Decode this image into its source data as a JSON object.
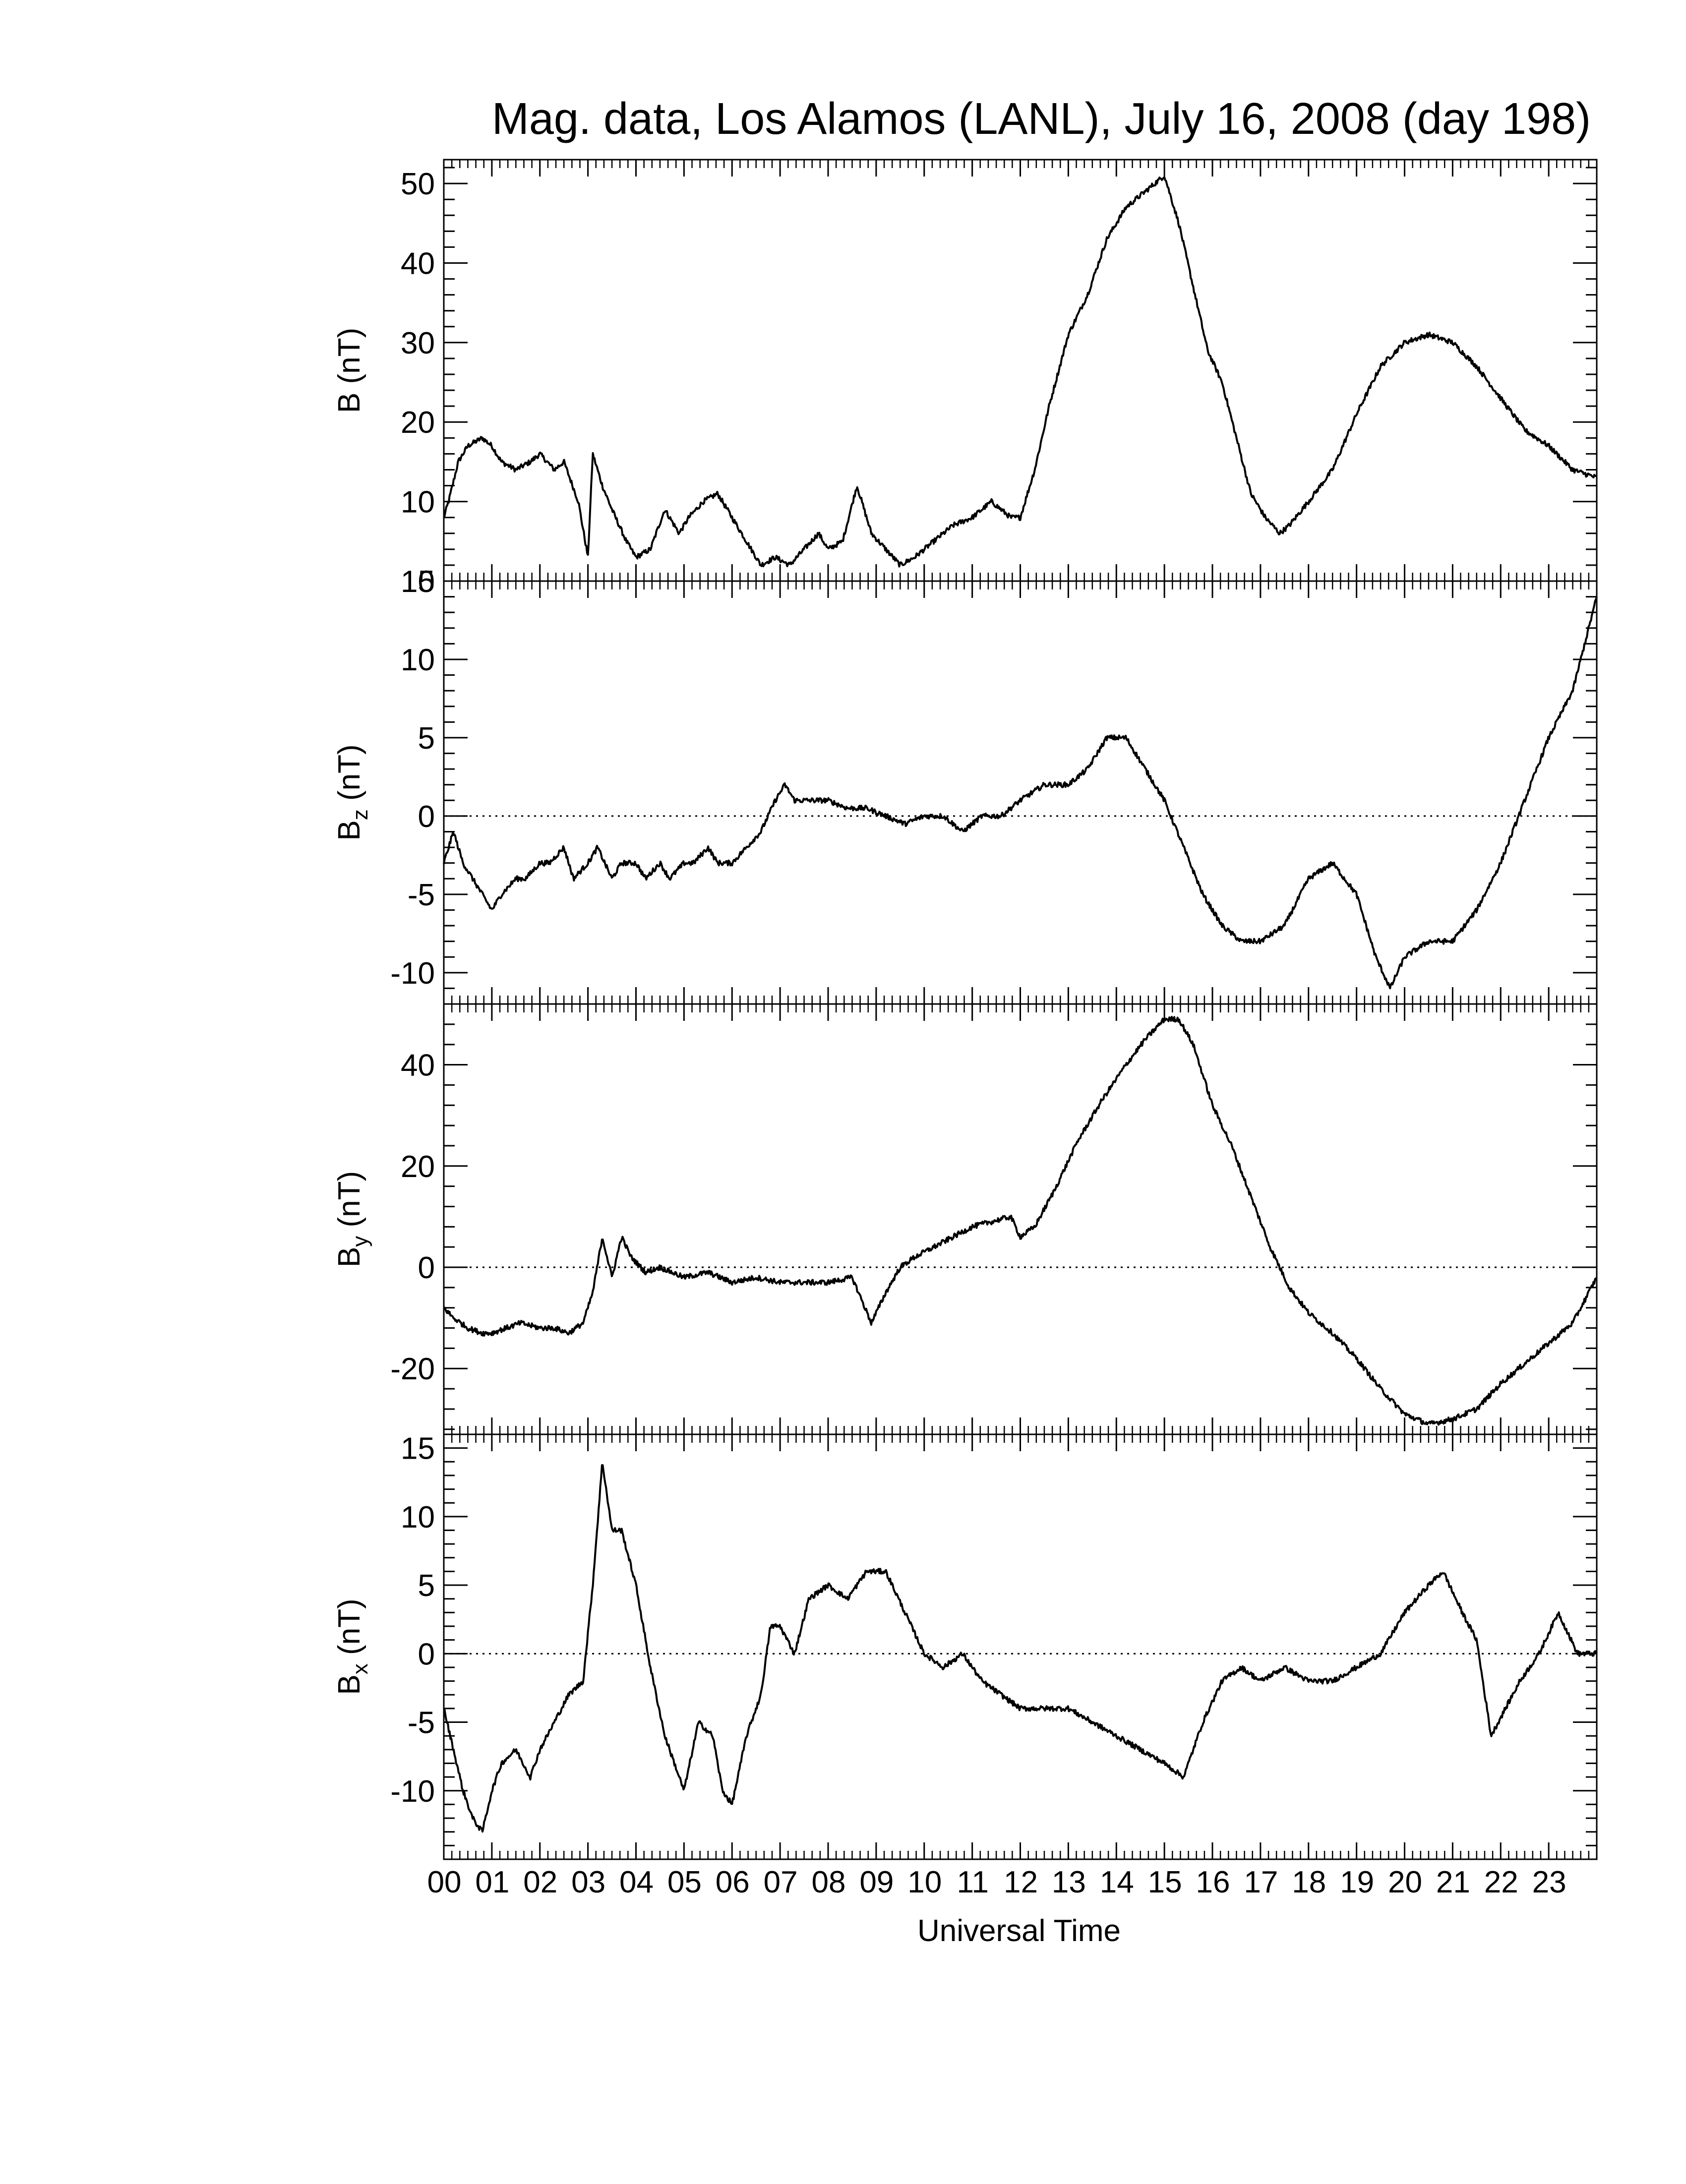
{
  "figure": {
    "title": "Mag. data, Los Alamos (LANL), July 16, 2008 (day 198)",
    "xlabel": "Universal Time"
  },
  "chart_data": [
    {
      "type": "line",
      "id": "B",
      "ylabel": "B (nT)",
      "ylabel_main": "B",
      "ylabel_sub": "",
      "ylabel_unit": "(nT)",
      "ylim": [
        0,
        53
      ],
      "yticks": [
        0,
        10,
        20,
        30,
        40,
        50
      ],
      "zero_line": false,
      "x_unit": "hours UT",
      "x": [
        0,
        0.1,
        0.3,
        0.5,
        0.8,
        1.0,
        1.2,
        1.5,
        1.8,
        2.0,
        2.3,
        2.5,
        2.8,
        3.0,
        3.1,
        3.3,
        3.5,
        3.8,
        4.0,
        4.3,
        4.6,
        4.9,
        5.1,
        5.4,
        5.7,
        6.0,
        6.3,
        6.6,
        6.9,
        7.2,
        7.5,
        7.8,
        8.0,
        8.3,
        8.6,
        8.9,
        9.2,
        9.5,
        9.8,
        10.2,
        10.6,
        11.0,
        11.4,
        11.8,
        12.0,
        12.3,
        12.6,
        13.0,
        13.4,
        13.8,
        14.2,
        14.6,
        15.0,
        15.3,
        15.6,
        15.9,
        16.2,
        16.5,
        16.8,
        17.1,
        17.4,
        17.6,
        18.0,
        18.5,
        19.0,
        19.5,
        20.0,
        20.5,
        21.0,
        21.5,
        22.0,
        22.5,
        23.0,
        23.5,
        24.0
      ],
      "y": [
        8,
        10,
        15,
        17,
        18,
        17,
        15,
        14,
        15,
        16,
        14,
        15,
        10,
        3,
        16,
        12,
        9,
        5,
        3,
        4,
        9,
        6,
        8,
        10,
        11,
        8,
        5,
        2,
        3,
        2,
        4,
        6,
        4,
        5,
        12,
        6,
        4,
        2,
        3,
        5,
        7,
        8,
        10,
        8,
        8,
        14,
        22,
        31,
        36,
        43,
        47,
        49,
        51,
        45,
        37,
        29,
        25,
        18,
        11,
        8,
        6,
        7,
        10,
        14,
        21,
        27,
        30,
        31,
        30,
        27,
        23,
        19,
        17,
        14,
        13
      ]
    },
    {
      "type": "line",
      "id": "Bz",
      "ylabel": "Bz (nT)",
      "ylabel_main": "B",
      "ylabel_sub": "z",
      "ylabel_unit": "(nT)",
      "ylim": [
        -12,
        15
      ],
      "yticks": [
        -10,
        -5,
        0,
        5,
        10,
        15
      ],
      "zero_line": true,
      "x_unit": "hours UT",
      "x": [
        0,
        0.1,
        0.2,
        0.4,
        0.6,
        0.8,
        1.0,
        1.2,
        1.5,
        1.7,
        2.0,
        2.2,
        2.5,
        2.7,
        3.0,
        3.2,
        3.5,
        3.7,
        4.0,
        4.2,
        4.5,
        4.7,
        5.0,
        5.2,
        5.5,
        5.7,
        6.0,
        6.3,
        6.6,
        6.9,
        7.1,
        7.3,
        7.6,
        8.0,
        8.4,
        8.8,
        9.2,
        9.6,
        10.0,
        10.4,
        10.8,
        11.2,
        11.6,
        12.0,
        12.5,
        13.0,
        13.4,
        13.8,
        14.2,
        14.6,
        15.0,
        15.4,
        15.8,
        16.2,
        16.6,
        17.0,
        17.5,
        18.0,
        18.5,
        19.0,
        19.4,
        19.7,
        20.0,
        20.5,
        21.0,
        21.5,
        22.0,
        22.5,
        23.0,
        23.5,
        24.0
      ],
      "y": [
        -3,
        -2,
        -1,
        -3,
        -4,
        -5,
        -6,
        -5,
        -4,
        -4,
        -3,
        -3,
        -2,
        -4,
        -3,
        -2,
        -4,
        -3,
        -3,
        -4,
        -3,
        -4,
        -3,
        -3,
        -2,
        -3,
        -3,
        -2,
        -1,
        1,
        2,
        1,
        1,
        1,
        0.5,
        0.5,
        0,
        -0.5,
        0,
        0,
        -1,
        0,
        0,
        1,
        2,
        2,
        3,
        5,
        5,
        3,
        1,
        -2,
        -5,
        -7,
        -8,
        -8,
        -7,
        -4,
        -3,
        -5,
        -9,
        -11,
        -9,
        -8,
        -8,
        -6,
        -3,
        1,
        5,
        8,
        14
      ]
    },
    {
      "type": "line",
      "id": "By",
      "ylabel": "By (nT)",
      "ylabel_main": "B",
      "ylabel_sub": "y",
      "ylabel_unit": "(nT)",
      "ylim": [
        -33,
        52
      ],
      "yticks": [
        -20,
        0,
        20,
        40
      ],
      "zero_line": true,
      "x_unit": "hours UT",
      "x": [
        0,
        0.2,
        0.5,
        0.8,
        1.0,
        1.3,
        1.6,
        2.0,
        2.3,
        2.6,
        2.9,
        3.1,
        3.3,
        3.5,
        3.7,
        3.9,
        4.2,
        4.5,
        5.0,
        5.5,
        6.0,
        6.5,
        7.0,
        7.5,
        8.0,
        8.5,
        8.9,
        9.2,
        9.5,
        9.8,
        10.2,
        10.6,
        11.0,
        11.4,
        11.8,
        12.0,
        12.3,
        12.7,
        13.2,
        13.7,
        14.2,
        14.6,
        15.0,
        15.3,
        15.6,
        16.0,
        16.4,
        16.8,
        17.2,
        17.6,
        18.0,
        18.5,
        19.0,
        19.5,
        20.0,
        20.5,
        21.0,
        21.5,
        22.0,
        22.5,
        23.0,
        23.5,
        24.0
      ],
      "y": [
        -8,
        -10,
        -12,
        -13,
        -13,
        -12,
        -11,
        -12,
        -12,
        -13,
        -11,
        -5,
        6,
        -2,
        6,
        2,
        -1,
        0,
        -2,
        -1,
        -3,
        -2,
        -3,
        -3,
        -3,
        -2,
        -11,
        -5,
        0,
        2,
        4,
        6,
        8,
        9,
        10,
        6,
        8,
        15,
        25,
        33,
        40,
        45,
        49,
        49,
        44,
        32,
        24,
        14,
        4,
        -4,
        -9,
        -13,
        -18,
        -24,
        -29,
        -31,
        -30,
        -28,
        -23,
        -19,
        -15,
        -11,
        -2
      ]
    },
    {
      "type": "line",
      "id": "Bx",
      "ylabel": "Bx (nT)",
      "ylabel_main": "B",
      "ylabel_sub": "x",
      "ylabel_unit": "(nT)",
      "ylim": [
        -15,
        16
      ],
      "yticks": [
        -10,
        -5,
        0,
        5,
        10,
        15
      ],
      "zero_line": true,
      "x_unit": "hours UT",
      "x": [
        0,
        0.2,
        0.4,
        0.6,
        0.8,
        1.0,
        1.2,
        1.5,
        1.8,
        2.0,
        2.3,
        2.6,
        2.9,
        3.1,
        3.3,
        3.5,
        3.7,
        4.0,
        4.3,
        4.6,
        4.8,
        5.0,
        5.3,
        5.6,
        5.8,
        6.0,
        6.3,
        6.6,
        6.8,
        7.0,
        7.3,
        7.6,
        8.0,
        8.4,
        8.8,
        9.2,
        9.6,
        10.0,
        10.4,
        10.8,
        11.2,
        11.6,
        12.0,
        12.5,
        13.0,
        13.5,
        14.0,
        14.5,
        15.0,
        15.4,
        15.8,
        16.2,
        16.6,
        17.0,
        17.5,
        18.0,
        18.5,
        19.0,
        19.5,
        20.0,
        20.5,
        20.8,
        21.2,
        21.5,
        21.8,
        22.1,
        22.4,
        22.8,
        23.2,
        23.6,
        24.0
      ],
      "y": [
        -4,
        -7,
        -10,
        -12,
        -13,
        -10,
        -8,
        -7,
        -9,
        -7,
        -5,
        -3,
        -2,
        5,
        14,
        9,
        9,
        5,
        -1,
        -6,
        -8,
        -10,
        -5,
        -6,
        -10,
        -11,
        -6,
        -3,
        2,
        2,
        0,
        4,
        5,
        4,
        6,
        6,
        3,
        0,
        -1,
        0,
        -2,
        -3,
        -4,
        -4,
        -4,
        -5,
        -6,
        -7,
        -8,
        -9,
        -5,
        -2,
        -1,
        -2,
        -1,
        -2,
        -2,
        -1,
        0,
        3,
        5,
        6,
        3,
        1,
        -6,
        -4,
        -2,
        0,
        3,
        0,
        0
      ]
    }
  ]
}
